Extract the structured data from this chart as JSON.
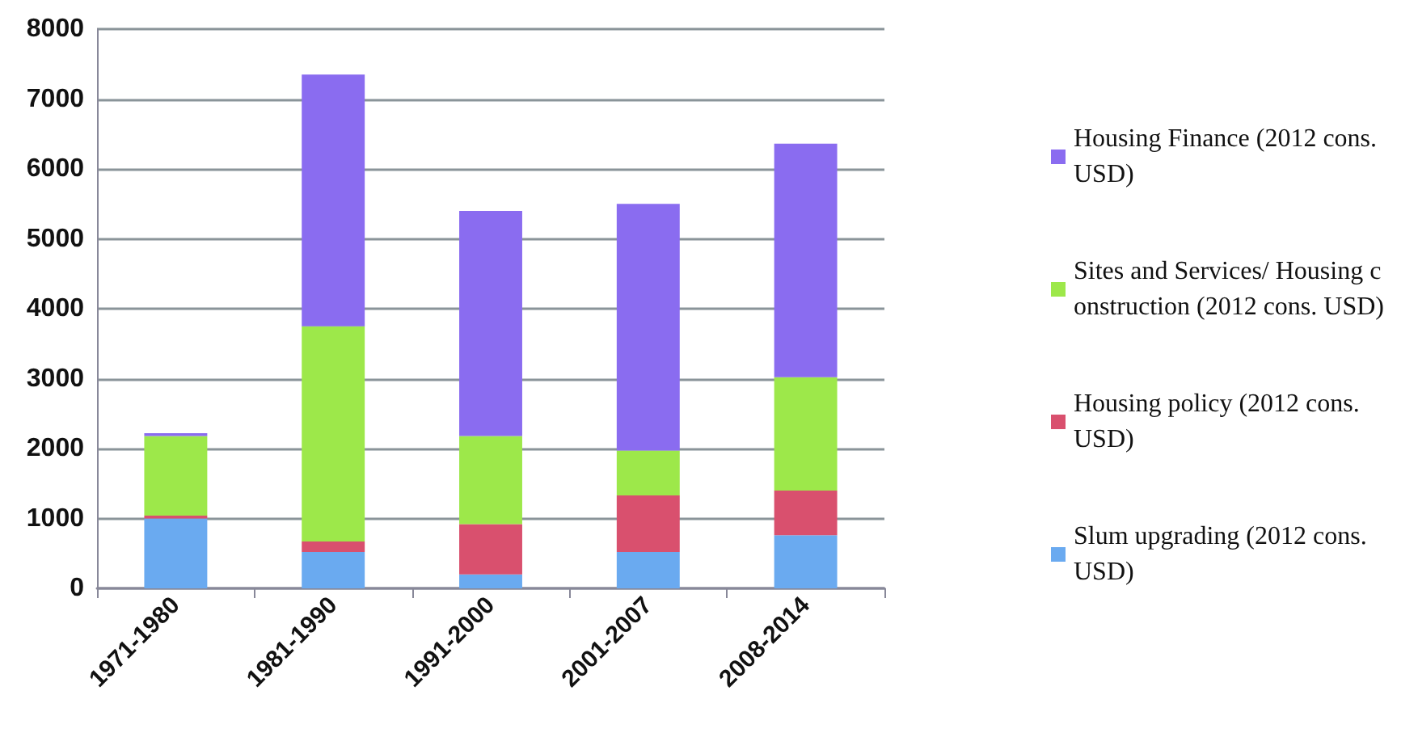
{
  "chart_data": {
    "type": "bar",
    "stacked": true,
    "categories": [
      "1971-1980",
      "1981-1990",
      "1991-2000",
      "2001-2007",
      "2008-2014"
    ],
    "series": [
      {
        "name": "Slum upgrading (2012 cons. USD)",
        "color": "#6aaaf0",
        "values": [
          1000,
          520,
          200,
          520,
          760
        ]
      },
      {
        "name": "Housing policy (2012 cons. USD)",
        "color": "#d9506e",
        "values": [
          40,
          150,
          720,
          810,
          640
        ]
      },
      {
        "name": "Sites and Services/ Housing c onstruction (2012 cons. USD)",
        "color": "#9de84a",
        "values": [
          1140,
          3080,
          1260,
          640,
          1620
        ]
      },
      {
        "name": "Housing Finance (2012 cons. USD)",
        "color": "#8a6cf0",
        "values": [
          40,
          3600,
          3220,
          3530,
          3340
        ]
      }
    ],
    "ylim": [
      0,
      8000
    ],
    "yticks": [
      0,
      1000,
      2000,
      3000,
      4000,
      5000,
      6000,
      7000,
      8000
    ],
    "grid": "y",
    "legend": "right"
  }
}
